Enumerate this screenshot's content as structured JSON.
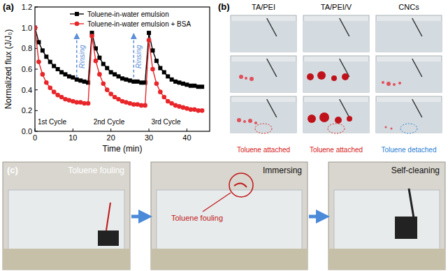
{
  "chart_data": {
    "type": "line",
    "panel_label": "(a)",
    "x_label": "Time (min)",
    "y_label": "Normalized flux (J/J₀)",
    "x": [
      0,
      1,
      2,
      3,
      4,
      5,
      6,
      7,
      8,
      9,
      10,
      11,
      12,
      13,
      14,
      15,
      16,
      17,
      18,
      19,
      20,
      21,
      22,
      23,
      24,
      25,
      26,
      27,
      28,
      29,
      30,
      31,
      32,
      33,
      34,
      35,
      36,
      37,
      38,
      39,
      40,
      41,
      42,
      43,
      44
    ],
    "series": [
      {
        "name": "Toluene-in-water emulsion",
        "color": "#000000",
        "marker": "square",
        "values": [
          1.0,
          0.86,
          0.78,
          0.72,
          0.67,
          0.63,
          0.6,
          0.57,
          0.55,
          0.53,
          0.52,
          0.5,
          0.49,
          0.48,
          0.47,
          0.95,
          0.8,
          0.71,
          0.65,
          0.61,
          0.57,
          0.55,
          0.53,
          0.51,
          0.5,
          0.49,
          0.48,
          0.48,
          0.47,
          0.47,
          0.95,
          0.78,
          0.68,
          0.61,
          0.57,
          0.53,
          0.5,
          0.48,
          0.47,
          0.46,
          0.45,
          0.44,
          0.44,
          0.43,
          0.43
        ]
      },
      {
        "name": "Toluene-in-water emulsion + BSA",
        "color": "#e8262a",
        "marker": "circle",
        "values": [
          1.0,
          0.67,
          0.55,
          0.47,
          0.42,
          0.38,
          0.35,
          0.33,
          0.31,
          0.3,
          0.29,
          0.28,
          0.28,
          0.27,
          0.27,
          0.92,
          0.68,
          0.55,
          0.46,
          0.4,
          0.36,
          0.33,
          0.31,
          0.29,
          0.28,
          0.27,
          0.26,
          0.26,
          0.25,
          0.25,
          0.88,
          0.6,
          0.46,
          0.38,
          0.33,
          0.29,
          0.27,
          0.25,
          0.24,
          0.23,
          0.22,
          0.21,
          0.21,
          0.2,
          0.2
        ]
      }
    ],
    "xlim": [
      0,
      46
    ],
    "ylim": [
      0,
      1.2
    ],
    "xticks": [
      0,
      10,
      20,
      30,
      40
    ],
    "yticks": [
      {
        "value": 0,
        "label": "0.0"
      },
      {
        "value": 0.2,
        "label": "0.2"
      },
      {
        "value": 0.4,
        "label": "0.4"
      },
      {
        "value": 0.6,
        "label": "0.6"
      },
      {
        "value": 0.8,
        "label": "0.8"
      },
      {
        "value": 1.0,
        "label": "1.0"
      },
      {
        "value": 1.2,
        "label": "1.2"
      }
    ],
    "legend": "upper center",
    "annotations": [
      "Rinsing",
      "Rinsing",
      "1st Cycle",
      "2nd Cycle",
      "3rd Cycle"
    ]
  },
  "photo_panels": {
    "b": {
      "label": "(b)",
      "columns": [
        {
          "title": "TA/PEI",
          "caption": "Toluene attached",
          "caption_color": "#d62020"
        },
        {
          "title": "TA/PEI/V",
          "caption": "Toluene attached",
          "caption_color": "#d62020"
        },
        {
          "title": "CNCs",
          "caption": "Toluene detached",
          "caption_color": "#2a7fd4"
        }
      ]
    },
    "c": {
      "label": "(c)",
      "steps": [
        "Toluene fouling",
        "Immersing",
        "Self-cleaning"
      ],
      "fouling_note": "Toluene fouling"
    }
  }
}
